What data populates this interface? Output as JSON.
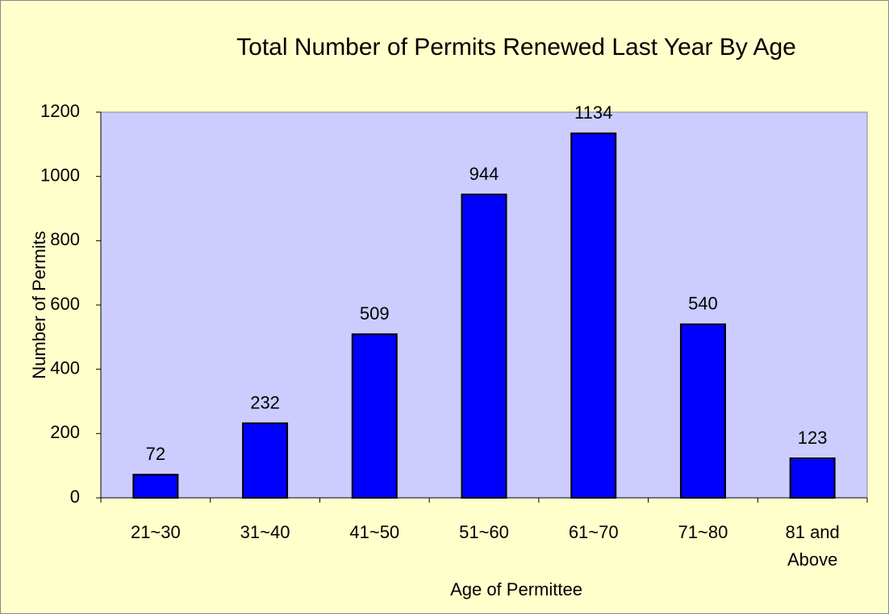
{
  "chart_data": {
    "type": "bar",
    "title": "Total Number of Permits Renewed Last Year By Age",
    "x_label": "Age of Permittee",
    "y_label": "Number of Permits",
    "categories": [
      "21~30",
      "31~40",
      "41~50",
      "51~60",
      "61~70",
      "71~80",
      "81 and Above"
    ],
    "values": [
      72,
      232,
      509,
      944,
      1134,
      540,
      123
    ],
    "color": "#0000ff",
    "ylim": [
      0,
      1200
    ],
    "yticks": [
      0,
      200,
      400,
      600,
      800,
      1000,
      1200
    ],
    "grid": false
  }
}
